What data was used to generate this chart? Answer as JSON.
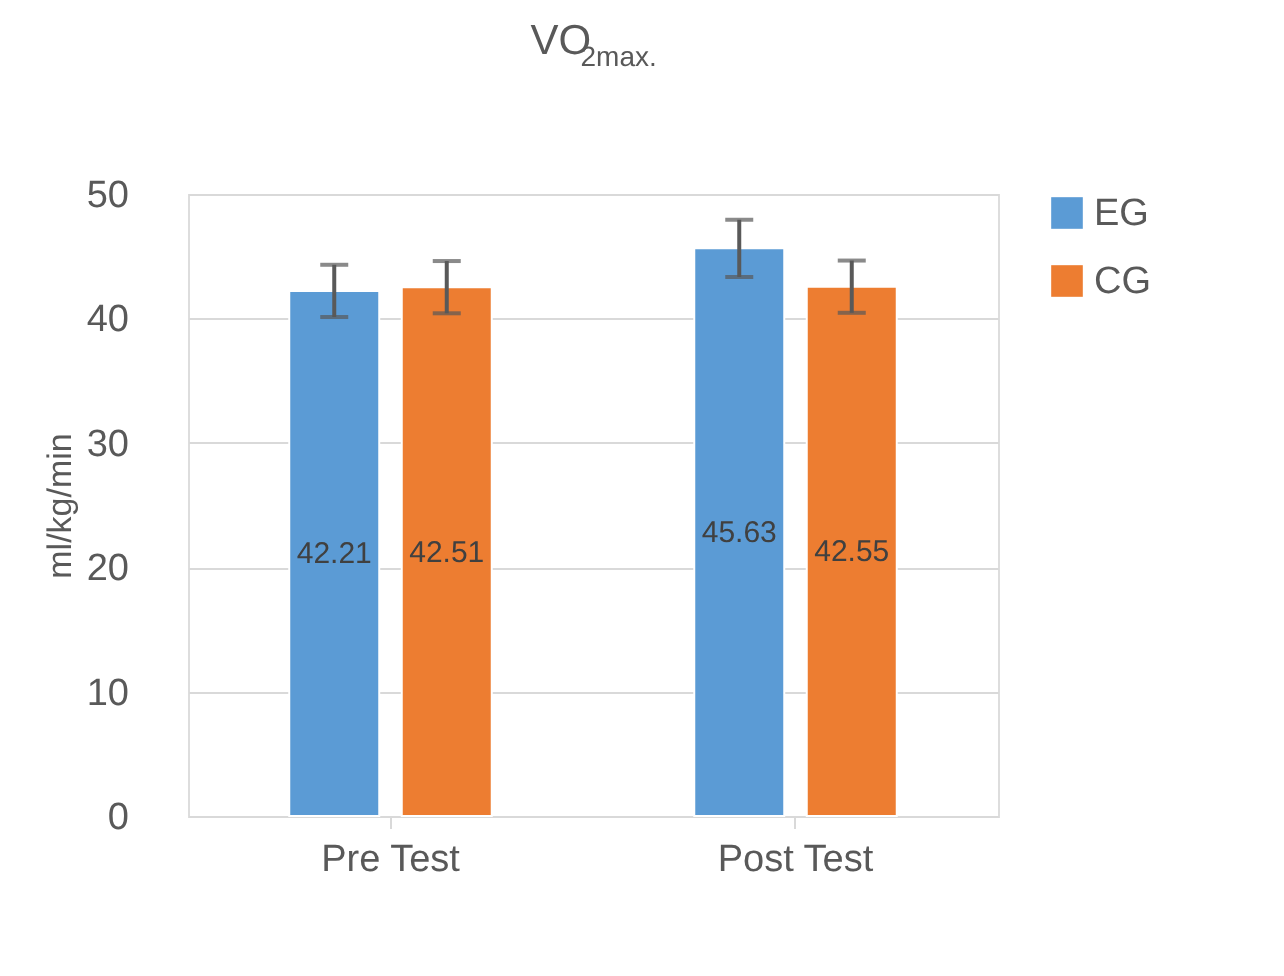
{
  "chart_data": {
    "type": "bar",
    "title": "VO$_{2max.}$",
    "ylabel": "ml/kg/min",
    "categories": [
      "Pre Test",
      "Post Test"
    ],
    "series": [
      {
        "name": "EG",
        "color": "#5b9bd5",
        "values": [
          42.21,
          45.63
        ],
        "errors": [
          2.1,
          2.3
        ]
      },
      {
        "name": "CG",
        "color": "#ed7d31",
        "values": [
          42.51,
          42.55
        ],
        "errors": [
          2.1,
          2.1
        ]
      }
    ],
    "ylim": [
      0,
      50
    ],
    "yticks": [
      0,
      10,
      20,
      30,
      40,
      50
    ],
    "grid": "y",
    "legend": "right",
    "data_labels": true
  }
}
